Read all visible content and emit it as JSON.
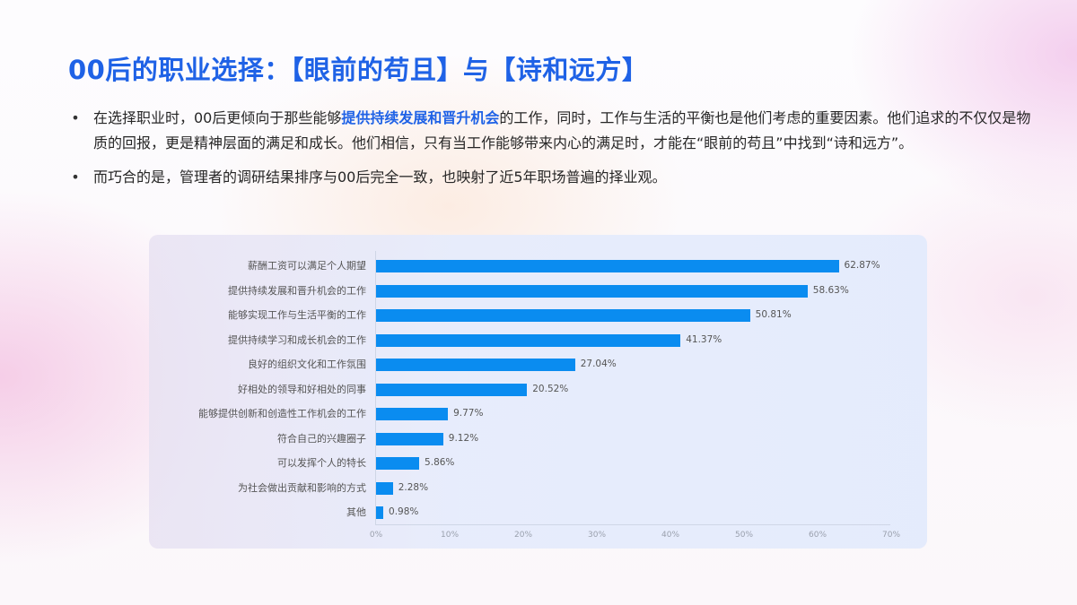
{
  "slide": {
    "title": "00后的职业选择：【眼前的苟且】与【诗和远方】",
    "bullets": [
      {
        "before": "在选择职业时，00后更倾向于那些能够",
        "highlight": "提供持续发展和晋升机会",
        "after": "的工作，同时，工作与生活的平衡也是他们考虑的重要因素。他们追求的不仅仅是物质的回报，更是精神层面的满足和成长。他们相信，只有当工作能够带来内心的满足时，才能在“眼前的苟且”中找到“诗和远方”。"
      },
      {
        "before": "而巧合的是，管理者的调研结果排序与00后完全一致，也映射了近5年职场普遍的择业观。",
        "highlight": "",
        "after": ""
      }
    ],
    "bullet_glyph": "•",
    "colors": {
      "accent": "#1f62e6",
      "bar": "#0a8cf0",
      "text": "#262626",
      "axis_text": "#9aa0ad"
    }
  },
  "chart_data": {
    "type": "bar",
    "orientation": "horizontal",
    "title": "",
    "xlabel": "",
    "ylabel": "",
    "categories": [
      "薪酬工资可以满足个人期望",
      "提供持续发展和晋升机会的工作",
      "能够实现工作与生活平衡的工作",
      "提供持续学习和成长机会的工作",
      "良好的组织文化和工作氛围",
      "好相处的领导和好相处的同事",
      "能够提供创新和创造性工作机会的工作",
      "符合自己的兴趣圈子",
      "可以发挥个人的特长",
      "为社会做出贡献和影响的方式",
      "其他"
    ],
    "values": [
      62.87,
      58.63,
      50.81,
      41.37,
      27.04,
      20.52,
      9.77,
      9.12,
      5.86,
      2.28,
      0.98
    ],
    "value_labels": [
      "62.87%",
      "58.63%",
      "50.81%",
      "41.37%",
      "27.04%",
      "20.52%",
      "9.77%",
      "9.12%",
      "5.86%",
      "2.28%",
      "0.98%"
    ],
    "xlim": [
      0,
      70
    ],
    "x_ticks": [
      "0%",
      "10%",
      "20%",
      "30%",
      "40%",
      "50%",
      "60%",
      "70%"
    ],
    "grid": false,
    "legend": null
  }
}
